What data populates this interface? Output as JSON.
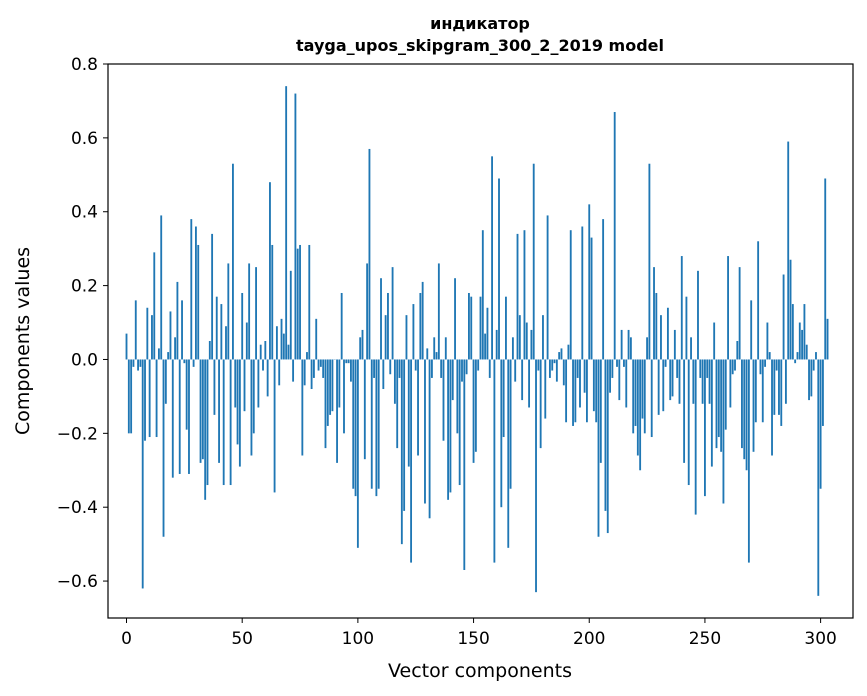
{
  "chart_data": {
    "type": "bar",
    "title": "индикатор",
    "subtitle": "tayga_upos_skipgram_300_2_2019 model",
    "xlabel": "Vector components",
    "ylabel": "Components values",
    "xlim": [
      -8,
      314
    ],
    "ylim": [
      -0.7,
      0.8
    ],
    "xticks": [
      0,
      50,
      100,
      150,
      200,
      250,
      300
    ],
    "xtick_labels": [
      "0",
      "50",
      "100",
      "150",
      "200",
      "250",
      "300"
    ],
    "yticks": [
      -0.6,
      -0.4,
      -0.2,
      0.0,
      0.2,
      0.4,
      0.6,
      0.8
    ],
    "ytick_labels": [
      "−0.6",
      "−0.4",
      "−0.2",
      "0.0",
      "0.2",
      "0.4",
      "0.6",
      "0.8"
    ],
    "bar_color": "#1f77b4",
    "grid": false,
    "values": [
      0.07,
      -0.2,
      -0.2,
      -0.02,
      0.16,
      -0.03,
      -0.02,
      -0.62,
      -0.22,
      0.14,
      -0.21,
      0.12,
      0.29,
      -0.21,
      0.03,
      0.39,
      -0.48,
      -0.12,
      0.02,
      0.13,
      -0.32,
      0.06,
      0.21,
      -0.31,
      0.16,
      -0.01,
      -0.19,
      -0.31,
      0.38,
      -0.02,
      0.36,
      0.31,
      -0.28,
      -0.27,
      -0.38,
      -0.34,
      0.05,
      0.34,
      -0.15,
      0.17,
      -0.28,
      0.15,
      -0.34,
      0.09,
      0.26,
      -0.34,
      0.53,
      -0.13,
      -0.23,
      -0.29,
      0.18,
      -0.14,
      0.1,
      0.26,
      -0.26,
      -0.2,
      0.25,
      -0.13,
      0.04,
      -0.03,
      0.05,
      -0.1,
      0.48,
      0.31,
      -0.36,
      0.09,
      -0.07,
      0.11,
      0.07,
      0.74,
      0.04,
      0.24,
      -0.06,
      0.72,
      0.3,
      0.31,
      -0.26,
      -0.07,
      0.02,
      0.31,
      -0.08,
      -0.05,
      0.11,
      -0.03,
      -0.02,
      -0.05,
      -0.24,
      -0.18,
      -0.15,
      -0.14,
      0.0,
      -0.28,
      -0.13,
      0.18,
      -0.2,
      -0.01,
      -0.01,
      -0.06,
      -0.35,
      -0.37,
      -0.51,
      0.06,
      0.08,
      -0.27,
      0.26,
      0.57,
      -0.35,
      -0.05,
      -0.37,
      -0.35,
      0.22,
      -0.08,
      0.12,
      0.18,
      -0.04,
      0.25,
      -0.12,
      -0.24,
      -0.05,
      -0.5,
      -0.41,
      0.12,
      -0.29,
      -0.55,
      0.15,
      -0.03,
      -0.26,
      0.18,
      0.21,
      -0.39,
      0.03,
      -0.43,
      -0.05,
      0.06,
      0.02,
      0.26,
      -0.05,
      -0.22,
      0.06,
      -0.38,
      -0.36,
      -0.11,
      0.22,
      -0.2,
      -0.34,
      -0.06,
      -0.57,
      -0.04,
      0.18,
      0.17,
      -0.28,
      -0.25,
      -0.03,
      0.17,
      0.35,
      0.07,
      0.14,
      -0.05,
      0.55,
      -0.55,
      0.08,
      0.49,
      -0.4,
      -0.21,
      0.17,
      -0.51,
      -0.35,
      0.06,
      -0.06,
      0.34,
      0.12,
      -0.11,
      0.35,
      0.1,
      -0.13,
      0.08,
      0.53,
      -0.63,
      -0.03,
      -0.24,
      0.12,
      -0.16,
      0.39,
      -0.05,
      -0.03,
      -0.01,
      -0.06,
      0.02,
      0.03,
      -0.07,
      -0.17,
      0.04,
      0.35,
      -0.18,
      -0.17,
      -0.05,
      -0.13,
      0.36,
      -0.09,
      -0.17,
      0.42,
      0.33,
      -0.14,
      -0.17,
      -0.48,
      -0.28,
      0.38,
      -0.41,
      -0.47,
      -0.09,
      -0.05,
      0.67,
      -0.02,
      -0.11,
      0.08,
      -0.02,
      -0.13,
      0.08,
      0.06,
      -0.2,
      -0.18,
      -0.26,
      -0.3,
      -0.16,
      -0.2,
      0.06,
      0.53,
      -0.21,
      0.25,
      0.18,
      -0.15,
      0.12,
      -0.14,
      -0.02,
      0.14,
      -0.11,
      -0.1,
      0.08,
      -0.05,
      -0.12,
      0.28,
      -0.28,
      0.17,
      -0.34,
      0.06,
      -0.12,
      -0.42,
      0.24,
      -0.05,
      -0.12,
      -0.37,
      -0.05,
      -0.12,
      -0.29,
      0.1,
      -0.24,
      -0.21,
      -0.25,
      -0.39,
      -0.19,
      0.28,
      -0.13,
      -0.04,
      -0.03,
      0.05,
      0.25,
      -0.24,
      -0.27,
      -0.3,
      -0.55,
      0.16,
      -0.25,
      -0.17,
      0.32,
      -0.04,
      -0.17,
      -0.02,
      0.1,
      0.02,
      -0.26,
      -0.15,
      -0.03,
      -0.15,
      -0.18,
      0.23,
      -0.12,
      0.59,
      0.27,
      0.15,
      -0.01,
      0.02,
      0.1,
      0.08,
      0.15,
      0.04,
      -0.11,
      -0.1,
      -0.03,
      0.02,
      -0.64,
      -0.35,
      -0.18,
      0.49,
      0.11
    ]
  }
}
